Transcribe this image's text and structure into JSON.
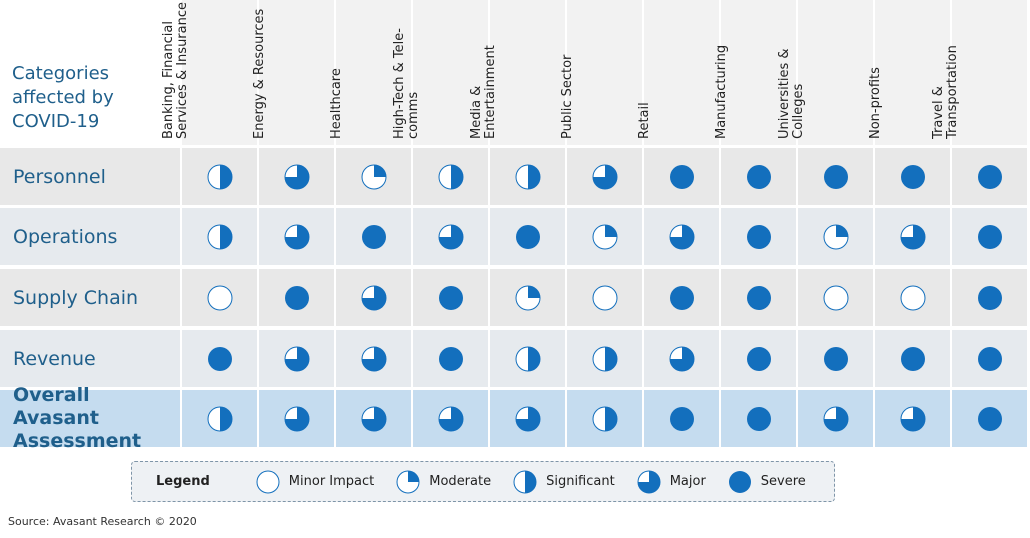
{
  "chart_data": {
    "type": "table",
    "title": "Categories affected by COVID-19",
    "columns": [
      "Banking, Financial Services & Insurance",
      "Energy & Resources",
      "Healthcare",
      "High-Tech & Tele-comms",
      "Media & Entertainment",
      "Public Sector",
      "Retail",
      "Manufacturing",
      "Universities & Colleges",
      "Non-profits",
      "Travel & Transportation"
    ],
    "rows": [
      {
        "label": "Personnel",
        "values": [
          2,
          3,
          1,
          2,
          2,
          3,
          4,
          4,
          4,
          4,
          4
        ]
      },
      {
        "label": "Operations",
        "values": [
          2,
          3,
          4,
          3,
          4,
          1,
          3,
          4,
          1,
          3,
          4
        ]
      },
      {
        "label": "Supply Chain",
        "values": [
          0,
          4,
          3,
          4,
          1,
          0,
          4,
          4,
          0,
          0,
          4
        ]
      },
      {
        "label": "Revenue",
        "values": [
          4,
          3,
          3,
          4,
          2,
          2,
          3,
          4,
          4,
          4,
          4
        ]
      },
      {
        "label": "Overall Avasant Assessment",
        "values": [
          2,
          3,
          3,
          3,
          3,
          2,
          4,
          4,
          3,
          3,
          4
        ],
        "highlight": true
      }
    ],
    "scale_max": 4,
    "legend_title": "Legend",
    "legend": [
      "Minor Impact",
      "Moderate",
      "Significant",
      "Major",
      "Severe"
    ],
    "colors": {
      "fill": "#136fbd",
      "row_a": "#e8e8e8",
      "row_b": "#e6eaee",
      "highlight": "#c5dcef"
    }
  },
  "source": "Source: Avasant Research © 2020"
}
